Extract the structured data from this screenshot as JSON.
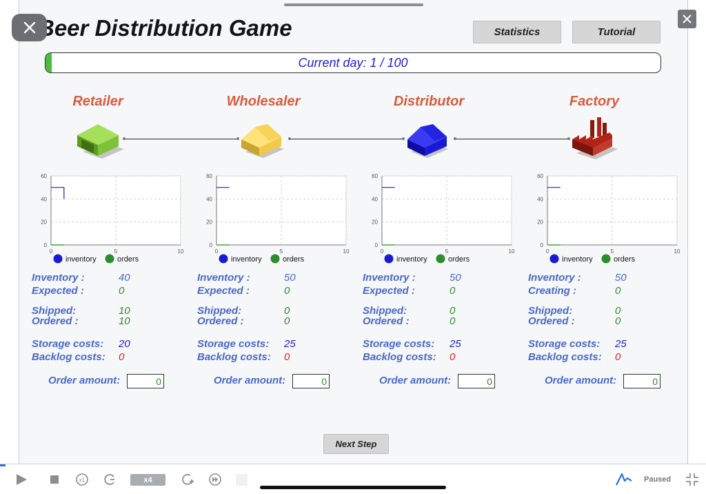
{
  "app": {
    "title": "Beer Distribution Game",
    "statistics_label": "Statistics",
    "tutorial_label": "Tutorial",
    "current_day_text": "Current day: 1 / 100",
    "day_progress_fraction": 0.01,
    "next_step_label": "Next Step"
  },
  "chart_legend": {
    "inventory": "inventory",
    "orders": "orders"
  },
  "roles": [
    {
      "name": "Retailer",
      "color": "#8bc34a",
      "stats": {
        "inventory_label": "Inventory :",
        "inventory": "40",
        "second_label": "Expected :",
        "second": "0",
        "shipped_label": "Shipped:",
        "shipped": "10",
        "ordered_label": "Ordered :",
        "ordered": "10",
        "storage_label": "Storage costs:",
        "storage": "20",
        "backlog_label": "Backlog costs:",
        "backlog": "0"
      },
      "order_label": "Order amount:",
      "order_value": "0"
    },
    {
      "name": "Wholesaler",
      "color": "#f2c94c",
      "stats": {
        "inventory_label": "Inventory :",
        "inventory": "50",
        "second_label": "Expected :",
        "second": "0",
        "shipped_label": "Shipped:",
        "shipped": "0",
        "ordered_label": "Ordered :",
        "ordered": "0",
        "storage_label": "Storage costs:",
        "storage": "25",
        "backlog_label": "Backlog costs:",
        "backlog": "0"
      },
      "order_label": "Order amount:",
      "order_value": "0"
    },
    {
      "name": "Distributor",
      "color": "#1a1ad6",
      "stats": {
        "inventory_label": "Inventory :",
        "inventory": "50",
        "second_label": "Expected :",
        "second": "0",
        "shipped_label": "Shipped:",
        "shipped": "0",
        "ordered_label": "Ordered :",
        "ordered": "0",
        "storage_label": "Storage costs:",
        "storage": "25",
        "backlog_label": "Backlog costs:",
        "backlog": "0"
      },
      "order_label": "Order amount:",
      "order_value": "0"
    },
    {
      "name": "Factory",
      "color": "#b02418",
      "stats": {
        "inventory_label": "Inventory :",
        "inventory": "50",
        "second_label": "Creating :",
        "second": "0",
        "shipped_label": "Shipped:",
        "shipped": "0",
        "ordered_label": "Ordered :",
        "ordered": "0",
        "storage_label": "Storage costs:",
        "storage": "25",
        "backlog_label": "Backlog costs:",
        "backlog": "0"
      },
      "order_label": "Order amount:",
      "order_value": "0"
    }
  ],
  "chart_data": [
    {
      "type": "line",
      "title": "",
      "xlim": [
        0,
        10
      ],
      "ylim": [
        0,
        60
      ],
      "x_ticks": [
        "0",
        "5",
        "10"
      ],
      "y_ticks": [
        "0",
        "20",
        "40",
        "60"
      ],
      "grid": true,
      "legend": "bottom",
      "series": [
        {
          "name": "inventory",
          "color": "#1a1ad6",
          "points": [
            [
              0,
              50
            ],
            [
              1,
              50
            ],
            [
              1,
              40
            ]
          ]
        },
        {
          "name": "orders",
          "color": "#2e8b2e",
          "points": [
            [
              0,
              0
            ],
            [
              1,
              0
            ]
          ]
        }
      ]
    },
    {
      "type": "line",
      "title": "",
      "xlim": [
        0,
        10
      ],
      "ylim": [
        0,
        60
      ],
      "x_ticks": [
        "0",
        "5",
        "10"
      ],
      "y_ticks": [
        "0",
        "20",
        "40",
        "60"
      ],
      "grid": true,
      "legend": "bottom",
      "series": [
        {
          "name": "inventory",
          "color": "#1a1ad6",
          "points": [
            [
              0,
              50
            ],
            [
              1,
              50
            ]
          ]
        },
        {
          "name": "orders",
          "color": "#2e8b2e",
          "points": [
            [
              0,
              0
            ],
            [
              1,
              0
            ]
          ]
        }
      ]
    },
    {
      "type": "line",
      "title": "",
      "xlim": [
        0,
        10
      ],
      "ylim": [
        0,
        60
      ],
      "x_ticks": [
        "0",
        "5",
        "10"
      ],
      "y_ticks": [
        "0",
        "20",
        "40",
        "60"
      ],
      "grid": true,
      "legend": "bottom",
      "series": [
        {
          "name": "inventory",
          "color": "#1a1ad6",
          "points": [
            [
              0,
              50
            ],
            [
              1,
              50
            ]
          ]
        },
        {
          "name": "orders",
          "color": "#2e8b2e",
          "points": [
            [
              0,
              0
            ],
            [
              1,
              0
            ]
          ]
        }
      ]
    },
    {
      "type": "line",
      "title": "",
      "xlim": [
        0,
        10
      ],
      "ylim": [
        0,
        60
      ],
      "x_ticks": [
        "0",
        "5",
        "10"
      ],
      "y_ticks": [
        "0",
        "20",
        "40",
        "60"
      ],
      "grid": true,
      "legend": "bottom",
      "series": [
        {
          "name": "inventory",
          "color": "#1a1ad6",
          "points": [
            [
              0,
              50
            ],
            [
              1,
              50
            ]
          ]
        },
        {
          "name": "orders",
          "color": "#2e8b2e",
          "points": [
            [
              0,
              0
            ],
            [
              1,
              0
            ]
          ]
        }
      ]
    }
  ],
  "player": {
    "speed_label": "x4",
    "status": "Paused",
    "icons": [
      "play-icon",
      "stop-icon",
      "speed-x1-icon",
      "step-back-icon",
      "step-forward-icon",
      "fast-forward-icon",
      "brand-icon",
      "collapse-icon"
    ]
  }
}
